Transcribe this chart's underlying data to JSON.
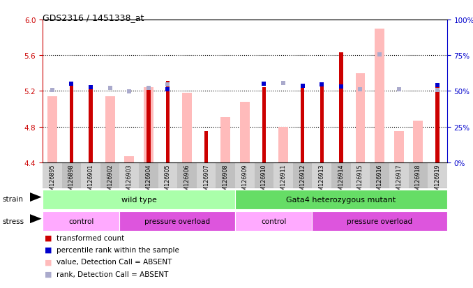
{
  "title": "GDS2316 / 1451338_at",
  "samples": [
    "GSM126895",
    "GSM126898",
    "GSM126901",
    "GSM126902",
    "GSM126903",
    "GSM126904",
    "GSM126905",
    "GSM126906",
    "GSM126907",
    "GSM126908",
    "GSM126909",
    "GSM126910",
    "GSM126911",
    "GSM126912",
    "GSM126913",
    "GSM126914",
    "GSM126915",
    "GSM126916",
    "GSM126917",
    "GSM126918",
    "GSM126919"
  ],
  "transformed_count": [
    null,
    5.27,
    5.24,
    null,
    null,
    5.24,
    5.31,
    null,
    4.75,
    null,
    null,
    5.24,
    null,
    5.24,
    5.27,
    5.63,
    null,
    null,
    null,
    null,
    5.24
  ],
  "value_absent": [
    5.14,
    null,
    null,
    5.14,
    4.47,
    5.24,
    null,
    5.18,
    null,
    4.91,
    5.08,
    null,
    4.8,
    null,
    null,
    null,
    5.4,
    5.9,
    4.75,
    4.87,
    null
  ],
  "pct_rank_yvals": [
    null,
    5.28,
    5.245,
    null,
    null,
    null,
    5.22,
    null,
    null,
    null,
    null,
    5.28,
    null,
    5.255,
    5.272,
    5.252,
    null,
    null,
    null,
    null,
    5.264
  ],
  "rank_absent_yvals": [
    5.212,
    null,
    null,
    5.232,
    5.192,
    5.232,
    5.272,
    null,
    null,
    null,
    null,
    null,
    5.292,
    null,
    null,
    5.252,
    5.22,
    5.612,
    5.22,
    null,
    5.212
  ],
  "ylim": [
    4.4,
    6.0
  ],
  "yticks_left": [
    4.4,
    4.8,
    5.2,
    5.6,
    6.0
  ],
  "yticks_right": [
    0,
    25,
    50,
    75,
    100
  ],
  "right_ylim": [
    0,
    100
  ],
  "strain_groups": [
    {
      "label": "wild type",
      "start": 0,
      "end": 10,
      "color": "#aaffaa"
    },
    {
      "label": "Gata4 heterozygous mutant",
      "start": 10,
      "end": 21,
      "color": "#66dd66"
    }
  ],
  "stress_groups": [
    {
      "label": "control",
      "start": 0,
      "end": 4,
      "color": "#ffaaff"
    },
    {
      "label": "pressure overload",
      "start": 4,
      "end": 10,
      "color": "#dd55dd"
    },
    {
      "label": "control",
      "start": 10,
      "end": 14,
      "color": "#ffaaff"
    },
    {
      "label": "pressure overload",
      "start": 14,
      "end": 21,
      "color": "#dd55dd"
    }
  ],
  "bar_color_red": "#cc0000",
  "bar_color_blue": "#0000cc",
  "bar_color_pink": "#ffbbbb",
  "bar_color_lavender": "#aaaacc",
  "background_color": "#ffffff",
  "axis_color_left": "#cc0000",
  "axis_color_right": "#0000cc",
  "tick_bg_even": "#d4d4d4",
  "tick_bg_odd": "#c0c0c0"
}
